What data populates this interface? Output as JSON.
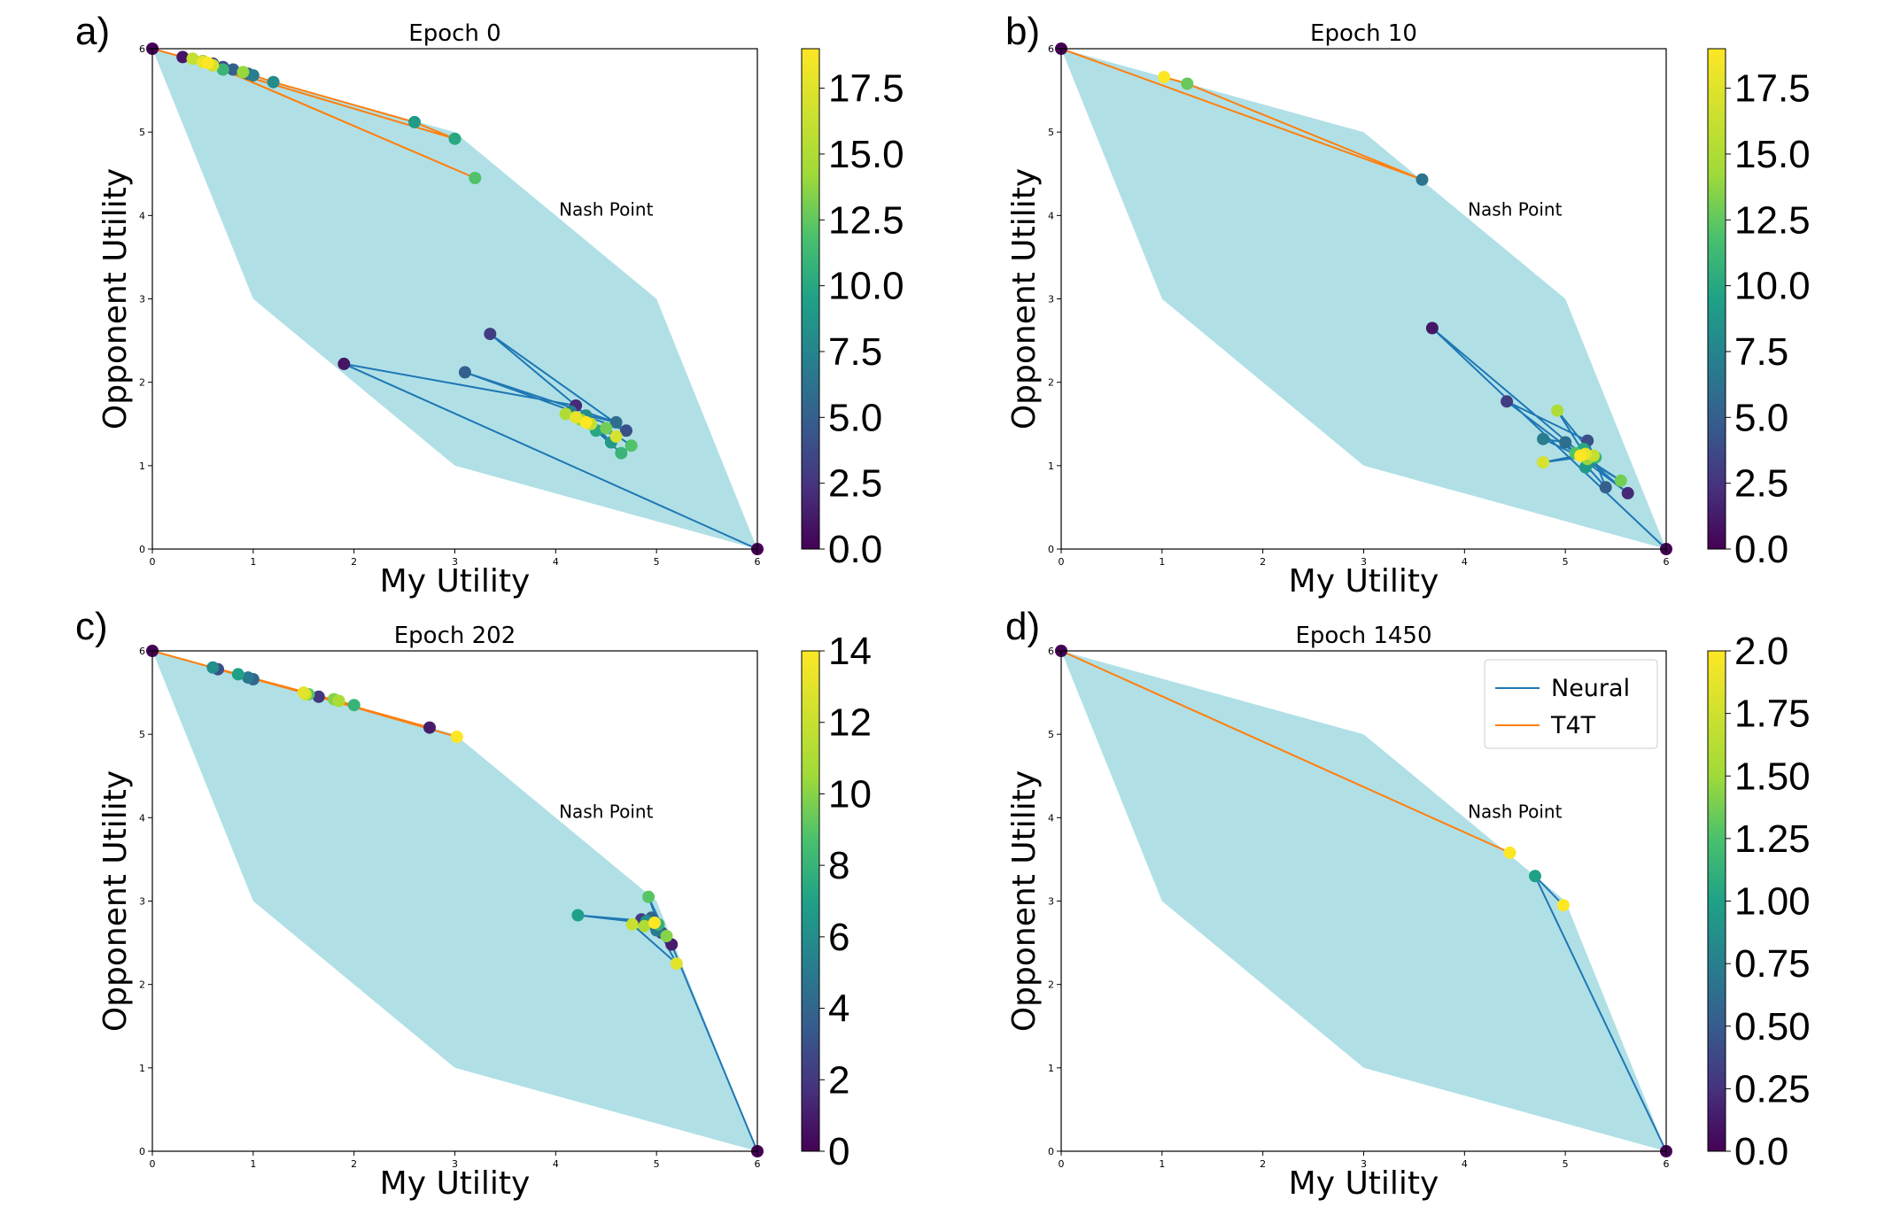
{
  "figure": {
    "xlabel": "My Utility",
    "ylabel": "Opponent Utility",
    "nash_label": "Nash Point",
    "legend": [
      {
        "name": "Neural",
        "color": "#1f77b4"
      },
      {
        "name": "T4T",
        "color": "#ff7f0e"
      }
    ],
    "feasible_region_color": "#b0e0e6"
  },
  "chart_data": [
    {
      "type": "scatter",
      "panel": "a)",
      "title": "Epoch 0",
      "xlim": [
        0,
        6
      ],
      "ylim": [
        0,
        6
      ],
      "xticks": [
        0,
        1,
        2,
        3,
        4,
        5,
        6
      ],
      "yticks": [
        0,
        1,
        2,
        3,
        4,
        5,
        6
      ],
      "feasible_region": [
        [
          0,
          6
        ],
        [
          3,
          5
        ],
        [
          5,
          3
        ],
        [
          6,
          0
        ],
        [
          3,
          1
        ],
        [
          1,
          3
        ]
      ],
      "nash_point": [
        4.5,
        4.0
      ],
      "colorbar": {
        "min": 0,
        "max": 19,
        "ticks": [
          "0.0",
          "2.5",
          "5.0",
          "7.5",
          "10.0",
          "12.5",
          "15.0",
          "17.5"
        ],
        "tick_values": [
          0,
          2.5,
          5,
          7.5,
          10,
          12.5,
          15,
          17.5
        ]
      },
      "series": [
        {
          "name": "Neural",
          "color": "#1f77b4",
          "points": [
            [
              6.0,
              0.0
            ],
            [
              1.9,
              2.22
            ],
            [
              4.2,
              1.72
            ],
            [
              3.35,
              2.58
            ],
            [
              4.7,
              1.42
            ],
            [
              3.1,
              2.12
            ],
            [
              4.6,
              1.52
            ],
            [
              4.15,
              1.65
            ],
            [
              4.3,
              1.6
            ],
            [
              4.55,
              1.28
            ],
            [
              4.4,
              1.42
            ],
            [
              4.65,
              1.15
            ],
            [
              4.75,
              1.24
            ],
            [
              4.5,
              1.45
            ],
            [
              4.25,
              1.55
            ],
            [
              4.1,
              1.62
            ],
            [
              4.35,
              1.5
            ],
            [
              4.6,
              1.35
            ],
            [
              4.2,
              1.58
            ],
            [
              4.3,
              1.52
            ]
          ]
        },
        {
          "name": "T4T",
          "color": "#ff7f0e",
          "points": [
            [
              0.0,
              6.0
            ],
            [
              0.3,
              5.9
            ],
            [
              0.5,
              5.85
            ],
            [
              0.6,
              5.82
            ],
            [
              0.7,
              5.78
            ],
            [
              0.8,
              5.75
            ],
            [
              0.95,
              5.7
            ],
            [
              1.0,
              5.68
            ],
            [
              1.2,
              5.6
            ],
            [
              2.6,
              5.12
            ],
            [
              3.0,
              4.92
            ],
            [
              0.7,
              5.75
            ],
            [
              3.2,
              4.45
            ],
            [
              0.6,
              5.8
            ],
            [
              0.9,
              5.72
            ],
            [
              0.5,
              5.85
            ],
            [
              0.4,
              5.88
            ],
            [
              0.6,
              5.8
            ],
            [
              0.5,
              5.84
            ],
            [
              0.55,
              5.83
            ]
          ]
        }
      ]
    },
    {
      "type": "scatter",
      "panel": "b)",
      "title": "Epoch 10",
      "xlim": [
        0,
        6
      ],
      "ylim": [
        0,
        6
      ],
      "xticks": [
        0,
        1,
        2,
        3,
        4,
        5,
        6
      ],
      "yticks": [
        0,
        1,
        2,
        3,
        4,
        5,
        6
      ],
      "feasible_region": [
        [
          0,
          6
        ],
        [
          3,
          5
        ],
        [
          5,
          3
        ],
        [
          6,
          0
        ],
        [
          3,
          1
        ],
        [
          1,
          3
        ]
      ],
      "nash_point": [
        4.5,
        4.0
      ],
      "colorbar": {
        "min": 0,
        "max": 19,
        "ticks": [
          "0.0",
          "2.5",
          "5.0",
          "7.5",
          "10.0",
          "12.5",
          "15.0",
          "17.5"
        ],
        "tick_values": [
          0,
          2.5,
          5,
          7.5,
          10,
          12.5,
          15,
          17.5
        ]
      },
      "series": [
        {
          "name": "Neural",
          "color": "#1f77b4",
          "points": [
            [
              6.0,
              0.0
            ],
            [
              3.68,
              2.65
            ],
            [
              5.62,
              0.67
            ],
            [
              4.42,
              1.77
            ],
            [
              5.22,
              1.3
            ],
            [
              5.4,
              0.74
            ],
            [
              5.0,
              1.28
            ],
            [
              4.78,
              1.32
            ],
            [
              5.25,
              1.05
            ],
            [
              5.2,
              0.98
            ],
            [
              5.18,
              1.2
            ],
            [
              5.3,
              1.1
            ],
            [
              5.1,
              1.15
            ],
            [
              5.55,
              0.82
            ],
            [
              5.22,
              1.08
            ],
            [
              4.92,
              1.66
            ],
            [
              5.28,
              1.12
            ],
            [
              4.78,
              1.04
            ],
            [
              5.2,
              1.14
            ],
            [
              5.15,
              1.12
            ]
          ]
        },
        {
          "name": "T4T",
          "color": "#ff7f0e",
          "points": [
            [
              0.0,
              6.0
            ],
            [
              3.58,
              4.43
            ],
            [
              1.25,
              5.58
            ],
            [
              1.02,
              5.66
            ]
          ]
        }
      ]
    },
    {
      "type": "scatter",
      "panel": "c)",
      "title": "Epoch 202",
      "xlim": [
        0,
        6
      ],
      "ylim": [
        0,
        6
      ],
      "xticks": [
        0,
        1,
        2,
        3,
        4,
        5,
        6
      ],
      "yticks": [
        0,
        1,
        2,
        3,
        4,
        5,
        6
      ],
      "feasible_region": [
        [
          0,
          6
        ],
        [
          3,
          5
        ],
        [
          5,
          3
        ],
        [
          6,
          0
        ],
        [
          3,
          1
        ],
        [
          1,
          3
        ]
      ],
      "nash_point": [
        4.5,
        4.0
      ],
      "colorbar": {
        "min": 0,
        "max": 14,
        "ticks": [
          "0",
          "2",
          "4",
          "6",
          "8",
          "10",
          "12",
          "14"
        ],
        "tick_values": [
          0,
          2,
          4,
          6,
          8,
          10,
          12,
          14
        ]
      },
      "series": [
        {
          "name": "Neural",
          "color": "#1f77b4",
          "points": [
            [
              6.0,
              0.0
            ],
            [
              5.15,
              2.48
            ],
            [
              4.85,
              2.78
            ],
            [
              5.05,
              2.62
            ],
            [
              4.95,
              2.8
            ],
            [
              5.0,
              2.65
            ],
            [
              4.9,
              2.76
            ],
            [
              4.22,
              2.83
            ],
            [
              5.02,
              2.72
            ],
            [
              4.92,
              3.05
            ],
            [
              5.1,
              2.58
            ],
            [
              4.88,
              2.7
            ],
            [
              4.76,
              2.72
            ],
            [
              5.2,
              2.25
            ],
            [
              4.98,
              2.74
            ]
          ]
        },
        {
          "name": "T4T",
          "color": "#ff7f0e",
          "points": [
            [
              0.0,
              6.0
            ],
            [
              2.75,
              5.08
            ],
            [
              1.65,
              5.45
            ],
            [
              0.65,
              5.78
            ],
            [
              1.0,
              5.66
            ],
            [
              0.95,
              5.68
            ],
            [
              0.6,
              5.8
            ],
            [
              0.85,
              5.72
            ],
            [
              2.0,
              5.35
            ],
            [
              1.55,
              5.48
            ],
            [
              1.8,
              5.42
            ],
            [
              1.85,
              5.4
            ],
            [
              1.52,
              5.48
            ],
            [
              1.5,
              5.5
            ],
            [
              3.02,
              4.97
            ]
          ]
        }
      ]
    },
    {
      "type": "scatter",
      "panel": "d)",
      "title": "Epoch 1450",
      "xlim": [
        0,
        6
      ],
      "ylim": [
        0,
        6
      ],
      "xticks": [
        0,
        1,
        2,
        3,
        4,
        5,
        6
      ],
      "yticks": [
        0,
        1,
        2,
        3,
        4,
        5,
        6
      ],
      "feasible_region": [
        [
          0,
          6
        ],
        [
          3,
          5
        ],
        [
          5,
          3
        ],
        [
          6,
          0
        ],
        [
          3,
          1
        ],
        [
          1,
          3
        ]
      ],
      "nash_point": [
        4.5,
        4.0
      ],
      "colorbar": {
        "min": 0,
        "max": 2,
        "ticks": [
          "0.0",
          "0.25",
          "0.50",
          "0.75",
          "1.00",
          "1.25",
          "1.50",
          "1.75",
          "2.0"
        ],
        "tick_values": [
          0,
          0.25,
          0.5,
          0.75,
          1.0,
          1.25,
          1.5,
          1.75,
          2.0
        ]
      },
      "show_legend": true,
      "series": [
        {
          "name": "Neural",
          "color": "#1f77b4",
          "points": [
            [
              6.0,
              0.0
            ],
            [
              4.7,
              3.3
            ],
            [
              4.98,
              2.95
            ]
          ]
        },
        {
          "name": "T4T",
          "color": "#ff7f0e",
          "points": [
            [
              0.0,
              6.0
            ],
            [
              4.45,
              3.58
            ]
          ]
        }
      ]
    }
  ]
}
